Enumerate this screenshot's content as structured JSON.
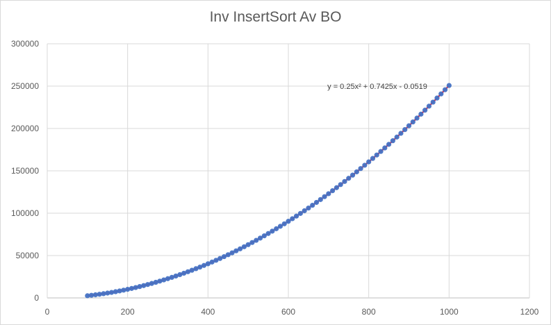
{
  "chart_data": {
    "type": "scatter",
    "title": "Inv InsertSort Av BO",
    "xlabel": "",
    "ylabel": "",
    "xlim": [
      0,
      1200
    ],
    "ylim": [
      0,
      300000
    ],
    "x_ticks": [
      0,
      200,
      400,
      600,
      800,
      1000,
      1200
    ],
    "y_ticks": [
      0,
      50000,
      100000,
      150000,
      200000,
      250000,
      300000
    ],
    "x_tick_labels": [
      "0",
      "200",
      "400",
      "600",
      "800",
      "1000",
      "1200"
    ],
    "y_tick_labels": [
      "0",
      "50000",
      "100000",
      "150000",
      "200000",
      "250000",
      "300000"
    ],
    "grid": true,
    "legend": "none",
    "series": [
      {
        "marker_color": "#4472c4",
        "x": [
          100,
          110,
          120,
          130,
          140,
          150,
          160,
          170,
          180,
          190,
          200,
          210,
          220,
          230,
          240,
          250,
          260,
          270,
          280,
          290,
          300,
          310,
          320,
          330,
          340,
          350,
          360,
          370,
          380,
          390,
          400,
          410,
          420,
          430,
          440,
          450,
          460,
          470,
          480,
          490,
          500,
          510,
          520,
          530,
          540,
          550,
          560,
          570,
          580,
          590,
          600,
          610,
          620,
          630,
          640,
          650,
          660,
          670,
          680,
          690,
          700,
          710,
          720,
          730,
          740,
          750,
          760,
          770,
          780,
          790,
          800,
          810,
          820,
          830,
          840,
          850,
          860,
          870,
          880,
          890,
          900,
          910,
          920,
          930,
          940,
          950,
          960,
          970,
          980,
          990,
          1000
        ],
        "y": [
          2574,
          3107,
          3689,
          4322,
          5004,
          5736,
          6519,
          7351,
          8234,
          9166,
          10149,
          11181,
          12263,
          13396,
          14578,
          15811,
          17093,
          18425,
          19808,
          21240,
          22723,
          24255,
          25837,
          27470,
          29152,
          30885,
          32667,
          34499,
          36382,
          38314,
          40297,
          42329,
          44411,
          46544,
          48726,
          50959,
          53241,
          55573,
          57956,
          60388,
          62871,
          65403,
          67985,
          70618,
          73300,
          76033,
          78815,
          81647,
          84530,
          87462,
          90445,
          93477,
          96559,
          99692,
          102874,
          106107,
          109389,
          112721,
          116104,
          119536,
          123019,
          126551,
          130133,
          133766,
          137448,
          141181,
          144963,
          148795,
          152678,
          156610,
          160593,
          164625,
          168707,
          172840,
          177022,
          181255,
          185537,
          189869,
          194252,
          198684,
          203167,
          207699,
          212281,
          216914,
          221596,
          226329,
          231111,
          235943,
          240826,
          245758,
          250741
        ]
      }
    ],
    "trendline": {
      "type": "polynomial",
      "order": 2,
      "color": "#e0213a",
      "coefficients": [
        0.25,
        0.7425,
        -0.0519
      ],
      "x_range": [
        100,
        1000
      ],
      "equation_label": "y = 0.25x² + 0.7425x - 0.0519"
    }
  }
}
